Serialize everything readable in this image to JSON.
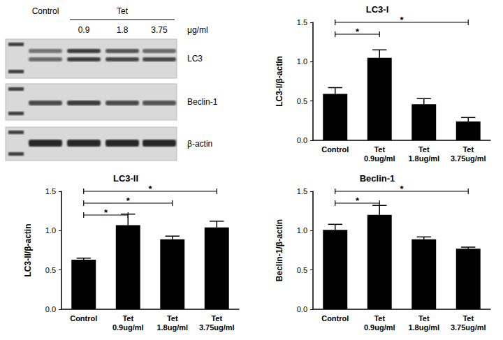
{
  "blot": {
    "lane_header": "Control",
    "group_label": "Tet",
    "doses": [
      "0.9",
      "1.8",
      "3.75"
    ],
    "unit": "μg/ml",
    "rows": [
      "LC3",
      "Beclin-1",
      "β-actin"
    ]
  },
  "chart_data": [
    {
      "type": "bar",
      "title": "LC3-I",
      "ylabel": "LC3-I/β-actin",
      "categories": [
        "Control",
        "Tet\n0.9ug/ml",
        "Tet\n1.8ug/ml",
        "Tet\n3.75ug/ml"
      ],
      "values": [
        0.59,
        1.05,
        0.46,
        0.24
      ],
      "errors": [
        0.08,
        0.1,
        0.07,
        0.05
      ],
      "color": "#000000",
      "ylim": [
        0,
        1.5
      ],
      "yticks": [
        {
          "value": 0,
          "label": "0.0"
        },
        0.5,
        {
          "value": 1,
          "label": "1.0"
        },
        1.5
      ],
      "grid": false,
      "comparisons": [
        {
          "groups": [
            "Control",
            "Tet\n0.9ug/ml"
          ],
          "label": "*"
        },
        {
          "groups": [
            "Control",
            "Tet\n3.75ug/ml"
          ],
          "label": "*"
        }
      ]
    },
    {
      "type": "bar",
      "title": "LC3-II",
      "ylabel": "LC3-II/β-actin",
      "categories": [
        "Control",
        "Tet\n0.9ug/ml",
        "Tet\n1.8ug/ml",
        "Tet\n3.75ug/ml"
      ],
      "values": [
        0.63,
        1.07,
        0.89,
        1.04
      ],
      "errors": [
        0.02,
        0.14,
        0.04,
        0.08
      ],
      "color": "#000000",
      "ylim": [
        0,
        1.5
      ],
      "yticks": [
        {
          "value": 0,
          "label": "0.0"
        },
        0.5,
        {
          "value": 1,
          "label": "1.0"
        },
        1.5
      ],
      "grid": false,
      "comparisons": [
        {
          "groups": [
            "Control",
            "Tet\n0.9ug/ml"
          ],
          "label": "*"
        },
        {
          "groups": [
            "Control",
            "Tet\n1.8ug/ml"
          ],
          "label": "*"
        },
        {
          "groups": [
            "Control",
            "Tet\n3.75ug/ml"
          ],
          "label": "*"
        }
      ]
    },
    {
      "type": "bar",
      "title": "Beclin-1",
      "ylabel": "Beclin-1/β-actin",
      "categories": [
        "Control",
        "Tet\n0.9ug/ml",
        "Tet\n1.8ug/ml",
        "Tet\n3.75ug/ml"
      ],
      "values": [
        1.01,
        1.2,
        0.89,
        0.77
      ],
      "errors": [
        0.07,
        0.12,
        0.03,
        0.02
      ],
      "color": "#000000",
      "ylim": [
        0,
        1.5
      ],
      "yticks": [
        {
          "value": 0,
          "label": "0.0"
        },
        0.5,
        {
          "value": 1,
          "label": "1.0"
        },
        1.5
      ],
      "grid": false,
      "comparisons": [
        {
          "groups": [
            "Control",
            "Tet\n0.9ug/ml"
          ],
          "label": "*"
        },
        {
          "groups": [
            "Control",
            "Tet\n3.75ug/ml"
          ],
          "label": "*"
        }
      ]
    }
  ]
}
